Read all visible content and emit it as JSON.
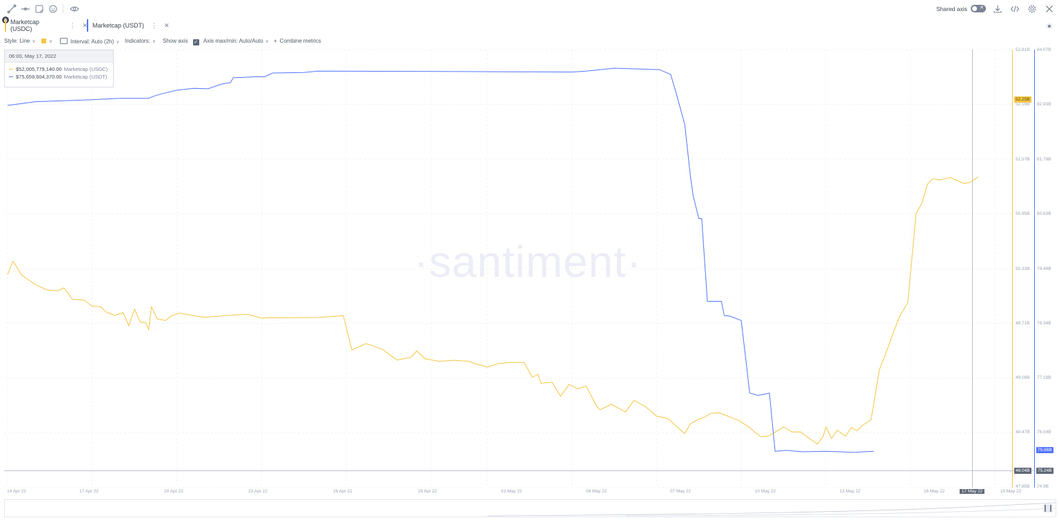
{
  "toolbar": {
    "shared_axis_label": "Shared axis",
    "icons": [
      "line-draw-icon",
      "ray-icon",
      "note-icon",
      "emoji-icon",
      "eye-icon",
      "download-icon",
      "code-icon",
      "gear-icon",
      "close-icon"
    ]
  },
  "tabs": [
    {
      "label": "Marketcap (USDC)",
      "color": "#f5c542"
    },
    {
      "label": "Marketcap (USDT)",
      "color": "#5275ff"
    }
  ],
  "options": {
    "style": "Style: Line",
    "interval": "Interval: Auto (2h)",
    "indicators": "Indicators:",
    "show_axis": "Show axis",
    "axis_minmax": "Axis max/min: Auto/Auto",
    "combine": "Combine metrics"
  },
  "watermark": "·santiment·",
  "tooltip": {
    "date": "06:00, May 17, 2022",
    "rows": [
      {
        "value": "$52,005,779,140.00",
        "label": "Marketcap (USDC)",
        "color": "#f5c542"
      },
      {
        "value": "$75,659,604,370.00",
        "label": "Marketcap (USDT)",
        "color": "#5275ff"
      }
    ]
  },
  "chart_data": {
    "type": "line",
    "x_ticks": [
      "14 Apr 22",
      "17 Apr 22",
      "20 Apr 22",
      "23 Apr 22",
      "26 Apr 22",
      "29 Apr 22",
      "01 May 22",
      "04 May 22",
      "07 May 22",
      "10 May 22",
      "13 May 22",
      "16 May 22",
      "17 May 22",
      "19 May 22"
    ],
    "axes": {
      "usdc": {
        "ticks": [
          "52.81B",
          "52.19B",
          "51.57B",
          "50.95B",
          "50.33B",
          "49.71B",
          "49.09B",
          "48.47B",
          "47.85B"
        ],
        "range": [
          47.85,
          52.81
        ]
      },
      "usdt": {
        "ticks": [
          "84.07B",
          "82.93B",
          "81.78B",
          "80.63B",
          "79.48B",
          "78.34B",
          "77.19B",
          "76.04B",
          "74.9B"
        ],
        "range": [
          74.9,
          84.07
        ]
      }
    },
    "badges": {
      "usdc_last": "52.25B",
      "usdt_last": "75.66B",
      "usdc_cursor": "48.04B",
      "usdt_cursor": "75.24B"
    },
    "series": [
      {
        "name": "Marketcap (USDC)",
        "color": "#f5c542",
        "axis": "usdc",
        "x": [
          14.0,
          14.2,
          14.5,
          15.0,
          15.4,
          15.8,
          16.0,
          16.3,
          16.7,
          17.0,
          17.3,
          17.5,
          17.8,
          18.1,
          18.3,
          18.5,
          18.7,
          18.9,
          19.0,
          19.1,
          19.3,
          19.6,
          19.8,
          20.1,
          20.6,
          21.0,
          21.8,
          22.5,
          23.0,
          24.0,
          25.0,
          25.9,
          26.2,
          26.7,
          26.9,
          27.3,
          27.8,
          28.3,
          28.5,
          28.8,
          29.3,
          29.8,
          30.3,
          31.0,
          31.4,
          31.8,
          32.3,
          32.6,
          32.8,
          32.9,
          33.3,
          33.6,
          33.9,
          34.2,
          34.5,
          34.9,
          35.0,
          35.4,
          35.9,
          36.2,
          36.6,
          37.0,
          37.4,
          38.0,
          38.2,
          38.5,
          38.7,
          38.9,
          39.2,
          39.9,
          40.3,
          40.5,
          40.7,
          41.0,
          41.5,
          41.8,
          42.1,
          42.3,
          42.7,
          42.9,
          43.0,
          43.2,
          43.4,
          43.7,
          43.9,
          44.1,
          44.3,
          44.6,
          44.9,
          45.1,
          45.4,
          45.6,
          45.9,
          46.2,
          46.4,
          46.6,
          46.8,
          47.0,
          47.4,
          47.9,
          48.1,
          48.4
        ],
        "y": [
          50.28,
          50.42,
          50.25,
          50.13,
          50.1,
          50.08,
          50.1,
          50.0,
          49.98,
          49.9,
          49.88,
          49.85,
          49.8,
          49.82,
          49.7,
          49.88,
          49.72,
          49.7,
          49.65,
          49.9,
          49.75,
          49.76,
          49.8,
          49.82,
          49.78,
          49.79,
          49.8,
          49.8,
          49.79,
          49.78,
          49.77,
          49.78,
          49.42,
          49.48,
          49.45,
          49.43,
          49.3,
          49.32,
          49.38,
          49.32,
          49.28,
          49.28,
          49.3,
          49.22,
          49.25,
          49.25,
          49.28,
          49.1,
          49.12,
          49.05,
          49.05,
          48.88,
          49.0,
          48.98,
          49.0,
          48.75,
          48.75,
          48.8,
          48.7,
          48.82,
          48.78,
          48.66,
          48.62,
          48.48,
          48.58,
          48.62,
          48.63,
          48.7,
          48.7,
          48.6,
          48.55,
          48.48,
          48.42,
          48.42,
          48.55,
          48.48,
          48.47,
          48.45,
          48.35,
          48.42,
          48.52,
          48.42,
          48.5,
          48.42,
          48.55,
          48.5,
          48.55,
          48.6,
          49.2,
          49.35,
          49.6,
          49.8,
          49.95,
          50.95,
          51.05,
          51.3,
          51.35,
          51.32,
          51.38,
          51.3,
          51.3,
          51.35
        ]
      },
      {
        "name": "Marketcap (USDT)",
        "color": "#5275ff",
        "axis": "usdt",
        "x": [
          14.0,
          15.0,
          16.0,
          17.0,
          18.0,
          19.0,
          19.2,
          19.5,
          20.0,
          20.6,
          21.1,
          21.6,
          21.9,
          22.0,
          22.8,
          23.1,
          23.4,
          24.5,
          25.0,
          30.0,
          34.0,
          34.5,
          35.5,
          36.5,
          37.1,
          37.5,
          37.7,
          38.0,
          38.2,
          38.3,
          38.5,
          38.6,
          38.8,
          39.3,
          39.4,
          39.6,
          40.0,
          40.3,
          40.6,
          41.0,
          41.2,
          41.6,
          42.2,
          43.0,
          44.0,
          44.7
        ],
        "y": [
          82.9,
          82.98,
          83.0,
          83.02,
          83.05,
          83.05,
          83.1,
          83.15,
          83.22,
          83.26,
          83.25,
          83.35,
          83.38,
          83.48,
          83.5,
          83.5,
          83.58,
          83.59,
          83.62,
          83.61,
          83.6,
          83.62,
          83.68,
          83.66,
          83.65,
          83.55,
          83.15,
          82.5,
          81.42,
          81.0,
          80.53,
          80.53,
          78.8,
          78.8,
          78.5,
          78.49,
          78.4,
          76.88,
          76.83,
          76.88,
          75.66,
          75.68,
          75.65,
          75.66,
          75.64,
          75.66
        ]
      }
    ]
  }
}
